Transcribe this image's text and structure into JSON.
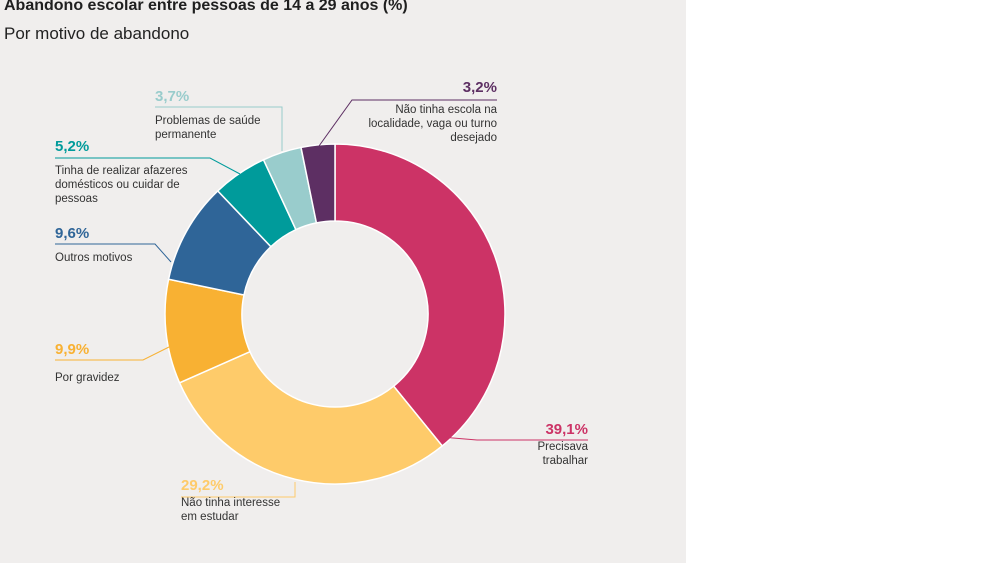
{
  "chart_data": {
    "type": "pie",
    "title": "Abandono escolar entre pessoas de 14 a 29 anos (%)",
    "subtitle": "Por motivo de abandono",
    "unit": "%",
    "slices": [
      {
        "value": "39,1%",
        "label": [
          "Precisava",
          "trabalhar"
        ],
        "color": "#cc3366",
        "share": 39.1
      },
      {
        "value": "29,2%",
        "label": [
          "Não tinha interesse",
          "em estudar"
        ],
        "color": "#fecb6a",
        "share": 29.2
      },
      {
        "value": "9,9%",
        "label": [
          "Por gravidez"
        ],
        "color": "#f8b133",
        "share": 9.9
      },
      {
        "value": "9,6%",
        "label": [
          "Outros motivos"
        ],
        "color": "#2f6598",
        "share": 9.6
      },
      {
        "value": "5,2%",
        "label": [
          "Tinha de realizar afazeres",
          "domésticos ou cuidar de",
          "pessoas"
        ],
        "color": "#009b9b",
        "share": 5.2
      },
      {
        "value": "3,7%",
        "label": [
          "Problemas de saúde",
          "permanente"
        ],
        "color": "#99cccc",
        "share": 3.7
      },
      {
        "value": "3,2%",
        "label": [
          "Não tinha escola na",
          "localidade, vaga ou turno",
          "desejado"
        ],
        "color": "#5d2f63",
        "share": 3.2
      }
    ],
    "text_colors": {
      "39,1%": "#cc3366",
      "29,2%": "#fecb6a",
      "9,9%": "#f8b133",
      "9,6%": "#2f6598",
      "5,2%": "#009b9b",
      "3,7%": "#99cccc",
      "3,2%": "#5d2f63"
    }
  }
}
